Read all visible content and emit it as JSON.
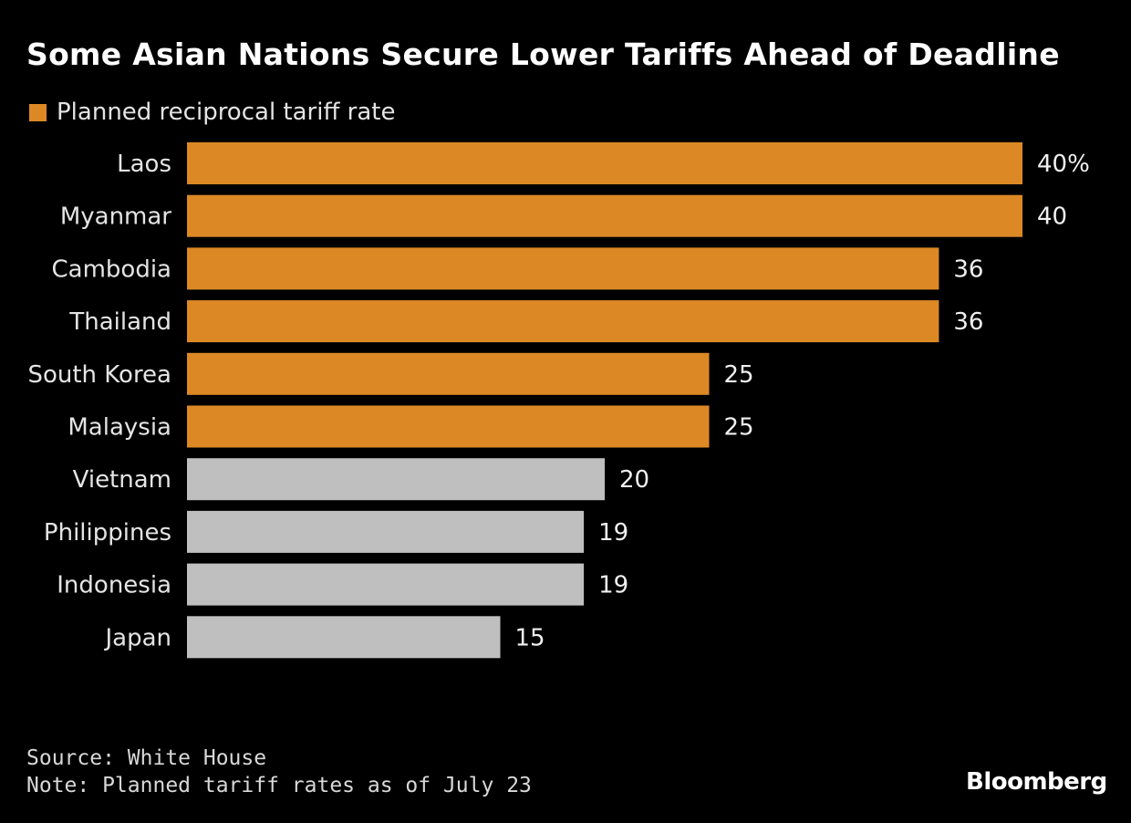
{
  "chart_data": {
    "type": "bar",
    "orientation": "horizontal",
    "title": "Some Asian Nations Secure Lower Tariffs Ahead of Deadline",
    "legend": [
      {
        "name": "Planned reciprocal tariff rate",
        "color": "#dc8925"
      }
    ],
    "legend_placement": "top-left",
    "categories": [
      "Laos",
      "Myanmar",
      "Cambodia",
      "Thailand",
      "South Korea",
      "Malaysia",
      "Vietnam",
      "Philippines",
      "Indonesia",
      "Japan"
    ],
    "values": [
      40,
      40,
      36,
      36,
      25,
      25,
      20,
      19,
      19,
      15
    ],
    "data_labels": [
      "40%",
      "40",
      "36",
      "36",
      "25",
      "25",
      "20",
      "19",
      "19",
      "15"
    ],
    "highlighted": [
      true,
      true,
      true,
      true,
      true,
      true,
      false,
      false,
      false,
      false
    ],
    "colors": {
      "highlight": "#dc8925",
      "other": "#bfbfbf"
    },
    "xlim": [
      0,
      40
    ],
    "grid": false,
    "unit": "%"
  },
  "footer": {
    "source": "Source: White House",
    "note": "Note: Planned tariff rates as of July 23"
  },
  "logo": "Bloomberg"
}
